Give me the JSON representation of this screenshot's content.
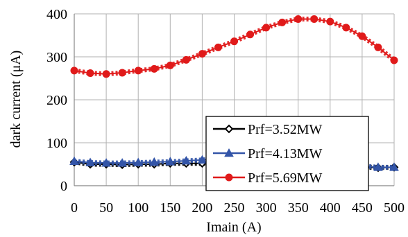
{
  "chart_data": {
    "type": "line",
    "title": "",
    "xlabel": "Imain (A)",
    "ylabel": "dark current (μA)",
    "xlim": [
      0,
      500
    ],
    "ylim": [
      0,
      400
    ],
    "xticks": [
      "0",
      "50",
      "100",
      "150",
      "200",
      "250",
      "300",
      "350",
      "400",
      "450",
      "500"
    ],
    "yticks": [
      "0",
      "100",
      "200",
      "300",
      "400"
    ],
    "grid": true,
    "legend_position": "center-right",
    "series": [
      {
        "name": "Prf=3.52MW",
        "color": "#000000",
        "marker": "diamond",
        "x": [
          0,
          25,
          50,
          75,
          100,
          125,
          150,
          175,
          200,
          225,
          250,
          275,
          300,
          325,
          350,
          375,
          400,
          425,
          450,
          475,
          500
        ],
        "y": [
          55,
          50,
          50,
          49,
          50,
          50,
          52,
          52,
          52,
          52,
          53,
          54,
          54,
          53,
          52,
          50,
          48,
          46,
          44,
          42,
          43
        ]
      },
      {
        "name": "Prf=4.13MW",
        "color": "#3355a8",
        "marker": "triangle",
        "x": [
          0,
          25,
          50,
          75,
          100,
          125,
          150,
          175,
          200,
          225,
          250,
          275,
          300,
          325,
          350,
          375,
          400,
          425,
          450,
          475,
          500
        ],
        "y": [
          57,
          54,
          53,
          53,
          54,
          55,
          56,
          58,
          60,
          63,
          65,
          66,
          66,
          65,
          63,
          60,
          56,
          52,
          46,
          43,
          43
        ]
      },
      {
        "name": "Prf=5.69MW",
        "color": "#e01a1a",
        "marker": "circle",
        "x": [
          0,
          25,
          50,
          75,
          100,
          125,
          150,
          175,
          200,
          225,
          250,
          275,
          300,
          325,
          350,
          375,
          400,
          425,
          450,
          475,
          500
        ],
        "y": [
          268,
          262,
          260,
          263,
          268,
          272,
          280,
          293,
          307,
          322,
          336,
          352,
          368,
          380,
          388,
          388,
          382,
          368,
          348,
          322,
          292
        ]
      }
    ]
  }
}
